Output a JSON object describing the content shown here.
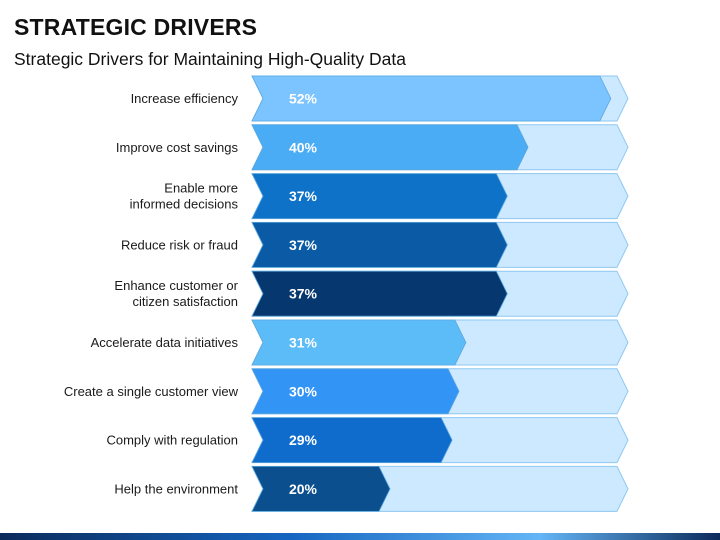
{
  "header": {
    "title": "STRATEGIC DRIVERS",
    "subtitle": "Strategic Drivers for Maintaining High-Quality Data"
  },
  "chart_data": {
    "type": "bar",
    "orientation": "horizontal",
    "value_format": "percent",
    "xlim": [
      0,
      100
    ],
    "track_color": "#cde9ff",
    "track_stroke": "#8ec8f2",
    "categories": [
      "Increase efficiency",
      "Improve cost savings",
      "Enable more\ninformed decisions",
      "Reduce risk or fraud",
      "Enhance customer or\ncitizen satisfaction",
      "Accelerate data initiatives",
      "Create a single customer view",
      "Comply with regulation",
      "Help the environment"
    ],
    "values": [
      52,
      40,
      37,
      37,
      37,
      31,
      30,
      29,
      20
    ],
    "labels": [
      "52%",
      "40%",
      "37%",
      "37%",
      "37%",
      "31%",
      "30%",
      "29%",
      "20%"
    ],
    "bar_colors": [
      "#7cc4ff",
      "#4aacf5",
      "#0f72c9",
      "#0a5aa6",
      "#06376e",
      "#5cbcf8",
      "#3294f5",
      "#0f6ccc",
      "#0b4f8e"
    ]
  }
}
